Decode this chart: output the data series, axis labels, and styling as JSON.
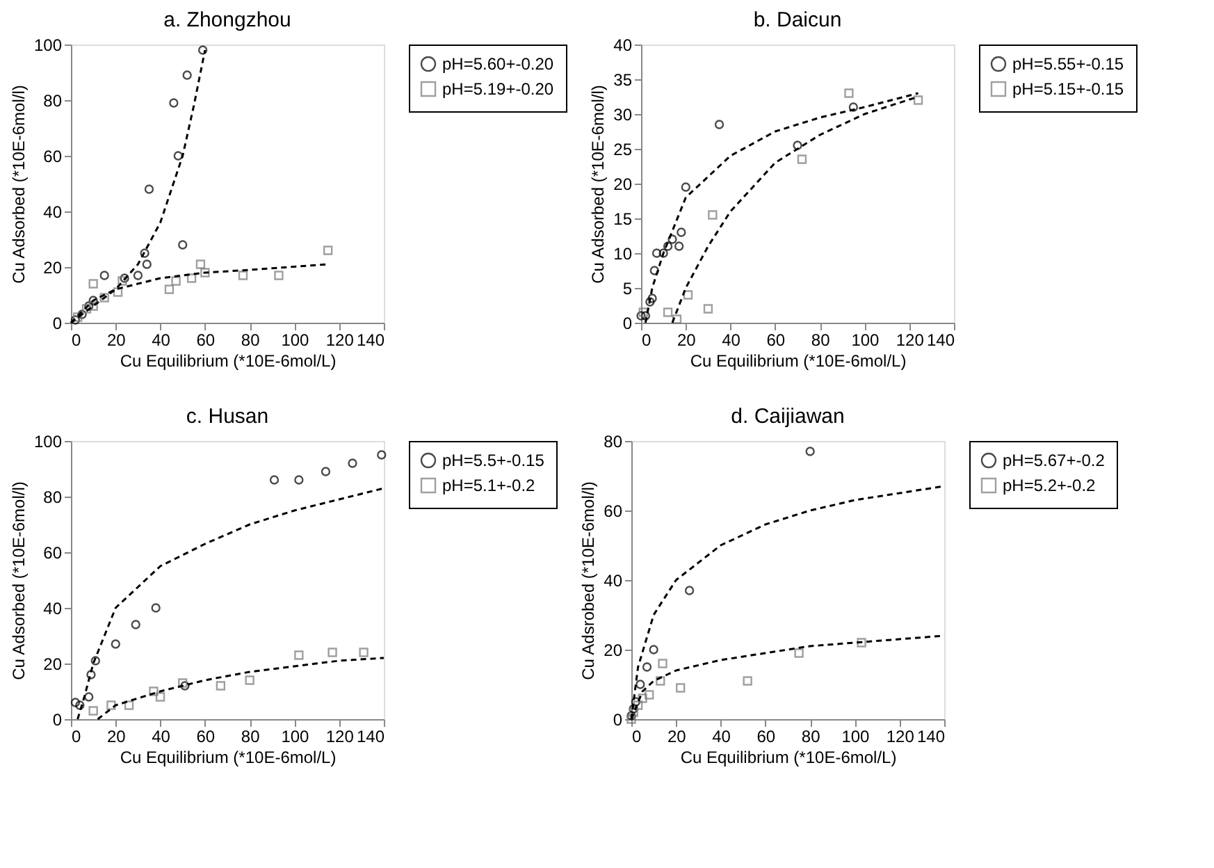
{
  "chart_data": [
    {
      "type": "scatter",
      "title": "a. Zhongzhou",
      "xlabel": "Cu Equilibrium (*10E-6mol/L)",
      "ylabel": "Cu Adsorbed (*10E-6mol/l)",
      "xlim": [
        0,
        140
      ],
      "xticks": [
        0,
        20,
        40,
        60,
        80,
        100,
        120,
        140
      ],
      "ylim": [
        0,
        100
      ],
      "yticks": [
        0,
        20,
        40,
        60,
        80,
        100
      ],
      "grid": false,
      "legend": "right",
      "series": [
        {
          "name": "pH=5.60+-0.20",
          "type": "scatter",
          "marker": "circle",
          "color": "#000000",
          "x": [
            2,
            5,
            8,
            10,
            15,
            24,
            30,
            33,
            34,
            35,
            46,
            48,
            50,
            52,
            59
          ],
          "values": [
            1,
            3,
            6,
            8,
            17,
            16,
            17,
            25,
            21,
            48,
            79,
            60,
            28,
            89,
            98
          ]
        },
        {
          "name": "pH=5.19+-0.20",
          "type": "scatter",
          "marker": "square",
          "color": "#777777",
          "x": [
            3,
            7,
            10,
            10,
            15,
            21,
            23,
            44,
            47,
            54,
            58,
            60,
            77,
            93,
            115
          ],
          "values": [
            2,
            5,
            14,
            6,
            9,
            11,
            15,
            12,
            15,
            16,
            21,
            18,
            17,
            17,
            26
          ]
        },
        {
          "type": "line",
          "line_style": "dashed",
          "color": "#000000",
          "x": [
            0,
            10,
            20,
            30,
            40,
            50,
            55,
            60
          ],
          "values": [
            0,
            6,
            12,
            21,
            36,
            60,
            78,
            98
          ]
        },
        {
          "type": "line",
          "line_style": "dashed",
          "color": "#000000",
          "x": [
            0,
            10,
            20,
            40,
            60,
            80,
            115
          ],
          "values": [
            0,
            8,
            12,
            16,
            18,
            19,
            21
          ]
        }
      ]
    },
    {
      "type": "scatter",
      "title": "b. Daicun",
      "xlabel": "Cu Equilibrium (*10E-6mol/L)",
      "ylabel": "Cu Adsorbed (*10E-6mol/l)",
      "xlim": [
        0,
        140
      ],
      "xticks": [
        0,
        20,
        40,
        60,
        80,
        100,
        120,
        140
      ],
      "ylim": [
        0,
        40
      ],
      "yticks": [
        0,
        5,
        10,
        15,
        20,
        25,
        30,
        35,
        40
      ],
      "grid": false,
      "legend": "right",
      "series": [
        {
          "name": "pH=5.55+-0.15",
          "type": "scatter",
          "marker": "circle",
          "color": "#000000",
          "x": [
            0,
            2,
            4,
            5,
            6,
            7,
            10,
            12,
            14,
            17,
            18,
            20,
            35,
            70,
            95
          ],
          "values": [
            1,
            1,
            3,
            3.5,
            7.5,
            10,
            10,
            11,
            12,
            11,
            13,
            19.5,
            28.5,
            25.5,
            31
          ]
        },
        {
          "name": "pH=5.15+-0.15",
          "type": "scatter",
          "marker": "square",
          "color": "#777777",
          "x": [
            1,
            12,
            16,
            21,
            30,
            32,
            72,
            93,
            124
          ],
          "values": [
            1.5,
            1.5,
            0.5,
            4,
            2,
            15.5,
            23.5,
            33,
            32
          ]
        },
        {
          "type": "line",
          "line_style": "dashed",
          "color": "#000000",
          "x": [
            2,
            5,
            10,
            20,
            40,
            60,
            80,
            100,
            124
          ],
          "values": [
            0,
            5,
            10,
            18,
            24,
            27.5,
            29.5,
            31,
            33
          ]
        },
        {
          "type": "line",
          "line_style": "dashed",
          "color": "#000000",
          "x": [
            14,
            20,
            30,
            40,
            60,
            80,
            100,
            124
          ],
          "values": [
            0,
            5,
            11,
            16,
            23,
            27,
            30,
            32.5
          ]
        }
      ]
    },
    {
      "type": "scatter",
      "title": "c. Husan",
      "xlabel": "Cu Equilibrium (*10E-6mol/L)",
      "ylabel": "Cu Adsorbed (*10E-6mol/l)",
      "xlim": [
        0,
        140
      ],
      "xticks": [
        0,
        20,
        40,
        60,
        80,
        100,
        120,
        140
      ],
      "ylim": [
        0,
        100
      ],
      "yticks": [
        0,
        20,
        40,
        60,
        80,
        100
      ],
      "grid": false,
      "legend": "right",
      "series": [
        {
          "name": "pH=5.5+-0.15",
          "type": "scatter",
          "marker": "circle",
          "color": "#000000",
          "x": [
            2,
            4,
            8,
            9,
            11,
            20,
            29,
            38,
            51,
            91,
            102,
            114,
            126,
            139
          ],
          "values": [
            6,
            5,
            8,
            16,
            21,
            27,
            34,
            40,
            12,
            86,
            86,
            89,
            92,
            95
          ]
        },
        {
          "name": "pH=5.1+-0.2",
          "type": "scatter",
          "marker": "square",
          "color": "#777777",
          "x": [
            10,
            18,
            26,
            37,
            40,
            50,
            67,
            80,
            102,
            117,
            131
          ],
          "values": [
            3,
            5,
            5,
            10,
            8,
            13,
            12,
            14,
            23,
            24,
            24
          ]
        },
        {
          "type": "line",
          "line_style": "dashed",
          "color": "#000000",
          "x": [
            3,
            6,
            10,
            20,
            40,
            60,
            80,
            100,
            120,
            140
          ],
          "values": [
            0,
            8,
            20,
            40,
            55,
            63,
            70,
            75,
            79,
            83
          ]
        },
        {
          "type": "line",
          "line_style": "dashed",
          "color": "#000000",
          "x": [
            12,
            20,
            40,
            60,
            80,
            100,
            120,
            140
          ],
          "values": [
            0,
            5,
            10,
            14,
            17,
            19,
            21,
            22
          ]
        }
      ]
    },
    {
      "type": "scatter",
      "title": "d. Caijiawan",
      "xlabel": "Cu Equilibrium (*10E-6mol/L)",
      "ylabel": "Cu Adsrobed (*10E-6mol/l)",
      "xlim": [
        0,
        140
      ],
      "xticks": [
        0,
        20,
        40,
        60,
        80,
        100,
        120,
        140
      ],
      "ylim": [
        0,
        80
      ],
      "yticks": [
        0,
        20,
        40,
        60,
        80
      ],
      "grid": false,
      "legend": "right",
      "series": [
        {
          "name": "pH=5.67+-0.2",
          "type": "scatter",
          "marker": "circle",
          "color": "#000000",
          "x": [
            0,
            1,
            2,
            4,
            7,
            10,
            26,
            80
          ],
          "values": [
            1,
            3,
            5,
            10,
            15,
            20,
            37,
            77
          ]
        },
        {
          "name": "pH=5.2+-0.2",
          "type": "scatter",
          "marker": "square",
          "color": "#777777",
          "x": [
            0,
            1,
            3,
            5,
            8,
            13,
            14,
            22,
            52,
            75,
            103
          ],
          "values": [
            0,
            2,
            4,
            6,
            7,
            11,
            16,
            9,
            11,
            19,
            22
          ]
        },
        {
          "type": "line",
          "line_style": "dashed",
          "color": "#000000",
          "x": [
            0,
            3,
            10,
            20,
            40,
            60,
            80,
            100,
            140
          ],
          "values": [
            0,
            15,
            30,
            40,
            50,
            56,
            60,
            63,
            67
          ]
        },
        {
          "type": "line",
          "line_style": "dashed",
          "color": "#000000",
          "x": [
            0,
            5,
            10,
            20,
            40,
            60,
            80,
            100,
            140
          ],
          "values": [
            0,
            8,
            11,
            14,
            17,
            19,
            21,
            22,
            24
          ]
        }
      ]
    }
  ]
}
